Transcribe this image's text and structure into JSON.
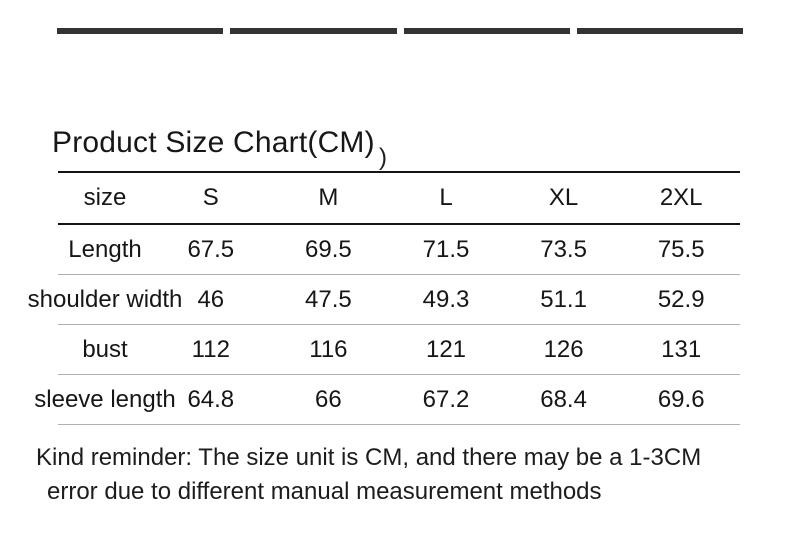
{
  "title": "Product Size Chart(CM)",
  "top_bars": {
    "count": 4,
    "color": "#333333"
  },
  "stray_mark": ")",
  "size_table": {
    "header": [
      "size",
      "S",
      "M",
      "L",
      "XL",
      "2XL"
    ],
    "rows": [
      [
        "Length",
        "67.5",
        "69.5",
        "71.5",
        "73.5",
        "75.5"
      ],
      [
        "shoulder width",
        "46",
        "47.5",
        "49.3",
        "51.1",
        "52.9"
      ],
      [
        "bust",
        "112",
        "116",
        "121",
        "126",
        "131"
      ],
      [
        "sleeve length",
        "64.8",
        "66",
        "67.2",
        "68.4",
        "69.6"
      ]
    ]
  },
  "reminder": {
    "line1": "Kind reminder: The size unit is CM, and there may be a 1-3CM",
    "line2": "error due to different manual measurement methods"
  },
  "colors": {
    "background": "#ffffff",
    "indicator_bar": "#333333",
    "table_strong_line": "#141414",
    "table_light_line": "#b0b0b0",
    "text": "#1a1a1a"
  }
}
